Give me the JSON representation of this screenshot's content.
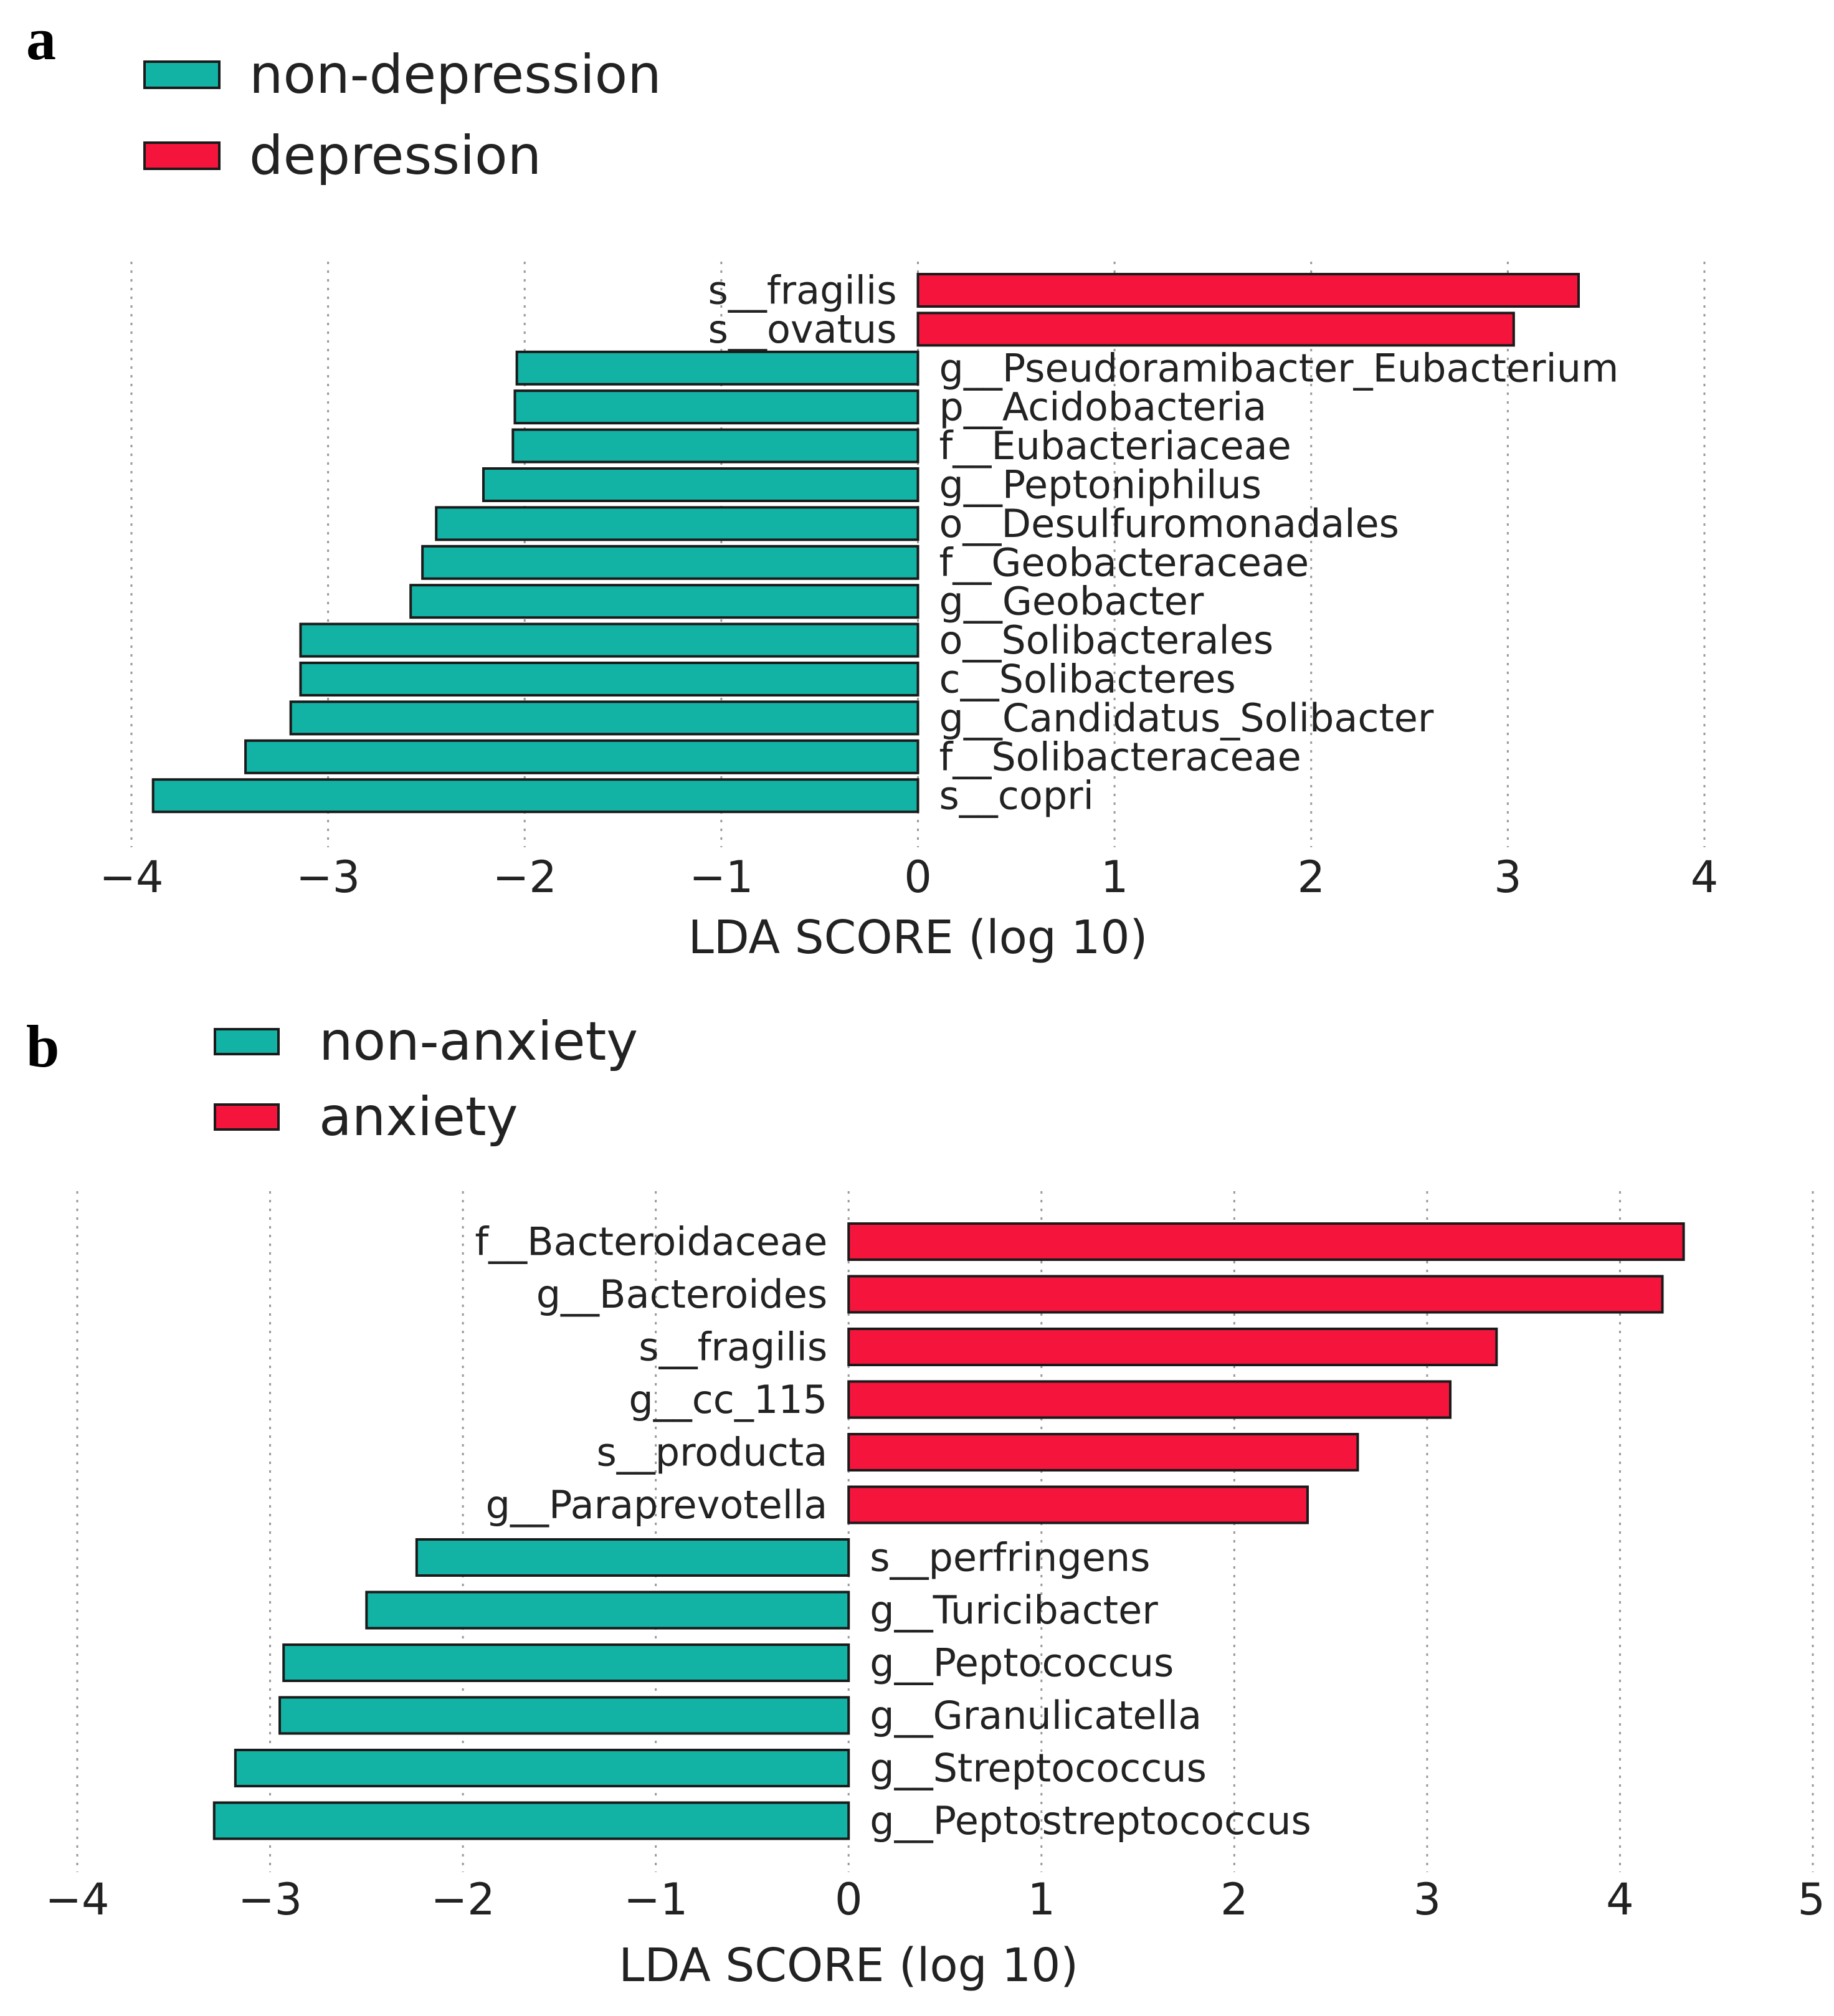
{
  "chart_data": [
    {
      "type": "bar",
      "orientation": "horizontal",
      "panel_label": "a",
      "xlabel": "LDA SCORE (log 10)",
      "xlim": [
        -4,
        4
      ],
      "xticks": [
        -4,
        -3,
        -2,
        -1,
        0,
        1,
        2,
        3,
        4
      ],
      "xtick_labels": [
        "−4",
        "−3",
        "−2",
        "−1",
        "0",
        "1",
        "2",
        "3",
        "4"
      ],
      "grid": true,
      "legend": [
        {
          "name": "non-depression",
          "color": "#12B2A4"
        },
        {
          "name": "depression",
          "color": "#F5143C"
        }
      ],
      "categories": [
        "s__fragilis",
        "s__ovatus",
        "g__Pseudoramibacter_Eubacterium",
        "p__Acidobacteria",
        "f__Eubacteriaceae",
        "g__Peptoniphilus",
        "o__Desulfuromonadales",
        "f__Geobacteraceae",
        "g__Geobacter",
        "o__Solibacterales",
        "c__Solibacteres",
        "g__Candidatus_Solibacter",
        "f__Solibacteraceae",
        "s__copri"
      ],
      "values": [
        3.36,
        3.03,
        -2.04,
        -2.05,
        -2.06,
        -2.21,
        -2.45,
        -2.52,
        -2.58,
        -3.14,
        -3.14,
        -3.19,
        -3.42,
        -3.89
      ],
      "groups": [
        "depression",
        "depression",
        "non-depression",
        "non-depression",
        "non-depression",
        "non-depression",
        "non-depression",
        "non-depression",
        "non-depression",
        "non-depression",
        "non-depression",
        "non-depression",
        "non-depression",
        "non-depression"
      ]
    },
    {
      "type": "bar",
      "orientation": "horizontal",
      "panel_label": "b",
      "xlabel": "LDA SCORE (log 10)",
      "xlim": [
        -4,
        5
      ],
      "xticks": [
        -4,
        -3,
        -2,
        -1,
        0,
        1,
        2,
        3,
        4,
        5
      ],
      "xtick_labels": [
        "−4",
        "−3",
        "−2",
        "−1",
        "0",
        "1",
        "2",
        "3",
        "4",
        "5"
      ],
      "grid": true,
      "legend": [
        {
          "name": "non-anxiety",
          "color": "#12B2A4"
        },
        {
          "name": "anxiety",
          "color": "#F5143C"
        }
      ],
      "categories": [
        "f__Bacteroidaceae",
        "g__Bacteroides",
        "s__fragilis",
        "g__cc_115",
        "s__producta",
        "g__Paraprevotella",
        "s__perfringens",
        "g__Turicibacter",
        "g__Peptococcus",
        "g__Granulicatella",
        "g__Streptococcus",
        "g__Peptostreptococcus"
      ],
      "values": [
        4.33,
        4.22,
        3.36,
        3.12,
        2.64,
        2.38,
        -2.24,
        -2.5,
        -2.93,
        -2.95,
        -3.18,
        -3.29
      ],
      "groups": [
        "anxiety",
        "anxiety",
        "anxiety",
        "anxiety",
        "anxiety",
        "anxiety",
        "non-anxiety",
        "non-anxiety",
        "non-anxiety",
        "non-anxiety",
        "non-anxiety",
        "non-anxiety"
      ]
    }
  ]
}
